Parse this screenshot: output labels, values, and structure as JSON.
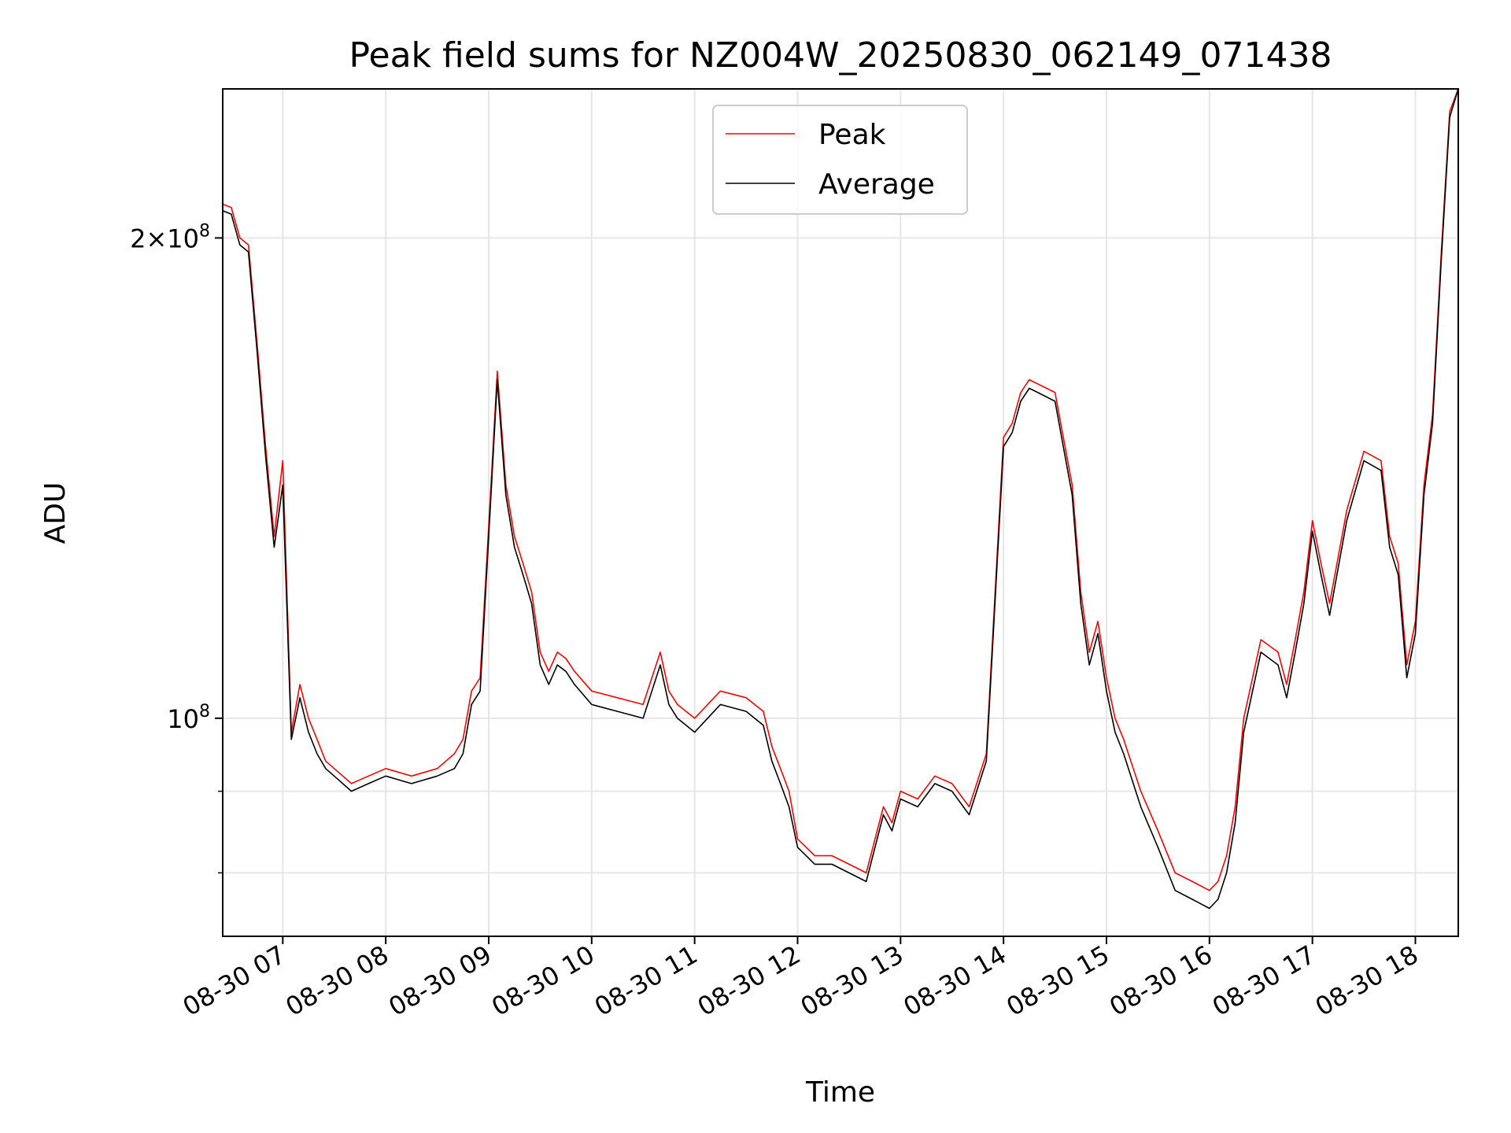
{
  "chart_data": {
    "type": "line",
    "title": "Peak field sums for NZ004W_20250830_062149_071438",
    "xlabel": "Time",
    "ylabel": "ADU",
    "y_scale": "log",
    "xlim": [
      "2025-08-30 06:25",
      "2025-08-30 18:25"
    ],
    "ylim": [
      73000000,
      248000000
    ],
    "grid": true,
    "legend_position": "upper center",
    "x_ticks": [
      "08-30 07",
      "08-30 08",
      "08-30 09",
      "08-30 10",
      "08-30 11",
      "08-30 12",
      "08-30 13",
      "08-30 14",
      "08-30 15",
      "08-30 16",
      "08-30 17",
      "08-30 18"
    ],
    "y_ticks": [
      {
        "value": 100000000,
        "label": "10^8"
      },
      {
        "value": 200000000,
        "label": "2×10^8"
      }
    ],
    "colors": {
      "peak": "#ff0000",
      "average": "#000000",
      "grid": "#e6e6e6"
    },
    "series": [
      {
        "name": "Peak",
        "x": [
          "06:25",
          "06:30",
          "06:35",
          "06:40",
          "06:45",
          "06:50",
          "06:55",
          "07:00",
          "07:05",
          "07:10",
          "07:15",
          "07:20",
          "07:25",
          "07:30",
          "07:40",
          "07:50",
          "08:00",
          "08:15",
          "08:30",
          "08:40",
          "08:45",
          "08:50",
          "08:55",
          "09:00",
          "09:05",
          "09:10",
          "09:15",
          "09:20",
          "09:25",
          "09:30",
          "09:35",
          "09:40",
          "09:45",
          "09:50",
          "10:00",
          "10:15",
          "10:30",
          "10:40",
          "10:45",
          "10:50",
          "11:00",
          "11:15",
          "11:30",
          "11:40",
          "11:45",
          "11:50",
          "11:55",
          "12:00",
          "12:05",
          "12:10",
          "12:20",
          "12:30",
          "12:40",
          "12:50",
          "12:55",
          "13:00",
          "13:10",
          "13:20",
          "13:30",
          "13:40",
          "13:50",
          "14:00",
          "14:05",
          "14:10",
          "14:15",
          "14:20",
          "14:30",
          "14:40",
          "14:45",
          "14:50",
          "14:55",
          "15:00",
          "15:05",
          "15:10",
          "15:20",
          "15:30",
          "15:40",
          "15:50",
          "16:00",
          "16:05",
          "16:10",
          "16:15",
          "16:20",
          "16:30",
          "16:40",
          "16:45",
          "16:50",
          "16:55",
          "17:00",
          "17:05",
          "17:10",
          "17:20",
          "17:30",
          "17:40",
          "17:45",
          "17:50",
          "17:55",
          "18:00",
          "18:05",
          "18:10",
          "18:15",
          "18:20",
          "18:25"
        ],
        "y": [
          210000000,
          209000000,
          200000000,
          198000000,
          172000000,
          148000000,
          130000000,
          145000000,
          98000000,
          105000000,
          100000000,
          97000000,
          94000000,
          93000000,
          91000000,
          92000000,
          93000000,
          92000000,
          93000000,
          95000000,
          97000000,
          104000000,
          106000000,
          132000000,
          165000000,
          140000000,
          130000000,
          125000000,
          120000000,
          110000000,
          107000000,
          110000000,
          109000000,
          107000000,
          104000000,
          103000000,
          102000000,
          110000000,
          104000000,
          102000000,
          100000000,
          104000000,
          103000000,
          101000000,
          96000000,
          93000000,
          90000000,
          84000000,
          83000000,
          82000000,
          82000000,
          81000000,
          80000000,
          88000000,
          86000000,
          90000000,
          89000000,
          92000000,
          91000000,
          88000000,
          95000000,
          150000000,
          153000000,
          160000000,
          163000000,
          162000000,
          160000000,
          140000000,
          120000000,
          110000000,
          115000000,
          106000000,
          100000000,
          97000000,
          90000000,
          85000000,
          80000000,
          79000000,
          78000000,
          79000000,
          82000000,
          88000000,
          100000000,
          112000000,
          110000000,
          105000000,
          112000000,
          120000000,
          133000000,
          125000000,
          118000000,
          135000000,
          147000000,
          145000000,
          130000000,
          125000000,
          108000000,
          115000000,
          140000000,
          155000000,
          195000000,
          240000000,
          248000000
        ]
      },
      {
        "name": "Average",
        "x": [
          "06:25",
          "06:30",
          "06:35",
          "06:40",
          "06:45",
          "06:50",
          "06:55",
          "07:00",
          "07:05",
          "07:10",
          "07:15",
          "07:20",
          "07:25",
          "07:30",
          "07:40",
          "07:50",
          "08:00",
          "08:15",
          "08:30",
          "08:40",
          "08:45",
          "08:50",
          "08:55",
          "09:00",
          "09:05",
          "09:10",
          "09:15",
          "09:20",
          "09:25",
          "09:30",
          "09:35",
          "09:40",
          "09:45",
          "09:50",
          "10:00",
          "10:15",
          "10:30",
          "10:40",
          "10:45",
          "10:50",
          "11:00",
          "11:15",
          "11:30",
          "11:40",
          "11:45",
          "11:50",
          "11:55",
          "12:00",
          "12:05",
          "12:10",
          "12:20",
          "12:30",
          "12:40",
          "12:50",
          "12:55",
          "13:00",
          "13:10",
          "13:20",
          "13:30",
          "13:40",
          "13:50",
          "14:00",
          "14:05",
          "14:10",
          "14:15",
          "14:20",
          "14:30",
          "14:40",
          "14:45",
          "14:50",
          "14:55",
          "15:00",
          "15:05",
          "15:10",
          "15:20",
          "15:30",
          "15:40",
          "15:50",
          "16:00",
          "16:05",
          "16:10",
          "16:15",
          "16:20",
          "16:30",
          "16:40",
          "16:45",
          "16:50",
          "16:55",
          "17:00",
          "17:05",
          "17:10",
          "17:20",
          "17:30",
          "17:40",
          "17:45",
          "17:50",
          "17:55",
          "18:00",
          "18:05",
          "18:10",
          "18:15",
          "18:20",
          "18:25"
        ],
        "y": [
          208000000,
          207000000,
          198000000,
          196000000,
          170000000,
          146000000,
          128000000,
          140000000,
          97000000,
          103000000,
          98000000,
          95000000,
          93000000,
          92000000,
          90000000,
          91000000,
          92000000,
          91000000,
          92000000,
          93000000,
          95000000,
          102000000,
          104000000,
          130000000,
          163000000,
          138000000,
          128000000,
          123000000,
          118000000,
          108000000,
          105000000,
          108000000,
          107000000,
          105000000,
          102000000,
          101000000,
          100000000,
          108000000,
          102000000,
          100000000,
          98000000,
          102000000,
          101000000,
          99000000,
          94000000,
          91000000,
          88000000,
          83000000,
          82000000,
          81000000,
          81000000,
          80000000,
          79000000,
          87000000,
          85000000,
          89000000,
          88000000,
          91000000,
          90000000,
          87000000,
          94000000,
          148000000,
          151000000,
          158000000,
          161000000,
          160000000,
          158000000,
          138000000,
          118000000,
          108000000,
          113000000,
          104000000,
          98000000,
          95000000,
          88000000,
          83000000,
          78000000,
          77000000,
          76000000,
          77000000,
          80000000,
          86000000,
          98000000,
          110000000,
          108000000,
          103000000,
          110000000,
          118000000,
          131000000,
          123000000,
          116000000,
          133000000,
          145000000,
          143000000,
          128000000,
          123000000,
          106000000,
          113000000,
          138000000,
          153000000,
          193000000,
          238000000,
          248000000
        ]
      }
    ]
  }
}
